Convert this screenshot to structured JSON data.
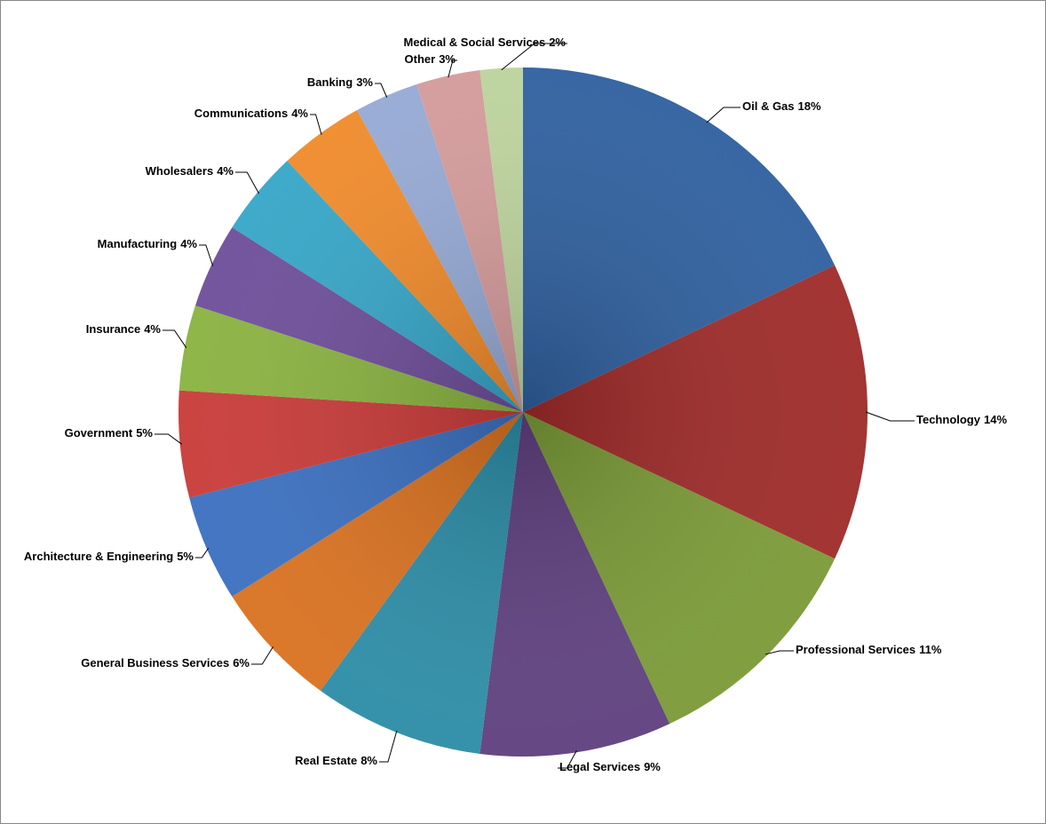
{
  "chart_data": {
    "type": "pie",
    "categories": [
      "Oil & Gas",
      "Technology",
      "Professional Services",
      "Legal Services",
      "Real Estate",
      "General Business Services",
      "Architecture & Engineering",
      "Government",
      "Insurance",
      "Manufacturing",
      "Wholesalers",
      "Communications",
      "Banking",
      "Other",
      "Medical & Social Services"
    ],
    "values": [
      18,
      14,
      11,
      9,
      8,
      6,
      5,
      5,
      4,
      4,
      4,
      4,
      3,
      3,
      2
    ],
    "value_labels": [
      "18%",
      "14%",
      "11%",
      "9%",
      "8%",
      "6%",
      "5%",
      "5%",
      "4%",
      "4%",
      "4%",
      "4%",
      "3%",
      "3%",
      "2%"
    ],
    "colors": [
      "#2e5f9e",
      "#9e2a28",
      "#7a9a36",
      "#5e3f7e",
      "#2b8ca6",
      "#d9711f",
      "#3a6fc0",
      "#c83a38",
      "#89b23f",
      "#6d4d99",
      "#35a5c7",
      "#f08a2a",
      "#95a9d4",
      "#d49a9a",
      "#bcd39c"
    ]
  }
}
